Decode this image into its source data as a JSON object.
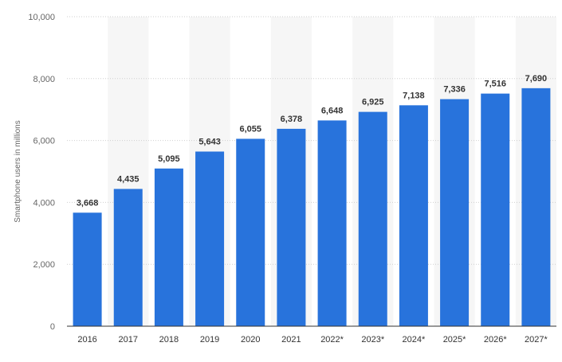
{
  "chart_data": {
    "type": "bar",
    "categories": [
      "2016",
      "2017",
      "2018",
      "2019",
      "2020",
      "2021",
      "2022*",
      "2023*",
      "2024*",
      "2025*",
      "2026*",
      "2027*"
    ],
    "values": [
      3668,
      4435,
      5095,
      5643,
      6055,
      6378,
      6648,
      6925,
      7138,
      7336,
      7516,
      7690
    ],
    "value_labels": [
      "3,668",
      "4,435",
      "5,095",
      "5,643",
      "6,055",
      "6,378",
      "6,648",
      "6,925",
      "7,138",
      "7,336",
      "7,516",
      "7,690"
    ],
    "title": "",
    "xlabel": "",
    "ylabel": "Smartphone users in millions",
    "ylim": [
      0,
      10000
    ],
    "y_ticks": [
      0,
      2000,
      4000,
      6000,
      8000,
      10000
    ],
    "y_tick_labels": [
      "0",
      "2,000",
      "4,000",
      "6,000",
      "8,000",
      "10,000"
    ],
    "grid": true,
    "legend": "none",
    "colors": {
      "bar": "#2873dc",
      "grid": "#cfcfcf",
      "band": "#f6f6f6",
      "axis": "#333333"
    }
  }
}
